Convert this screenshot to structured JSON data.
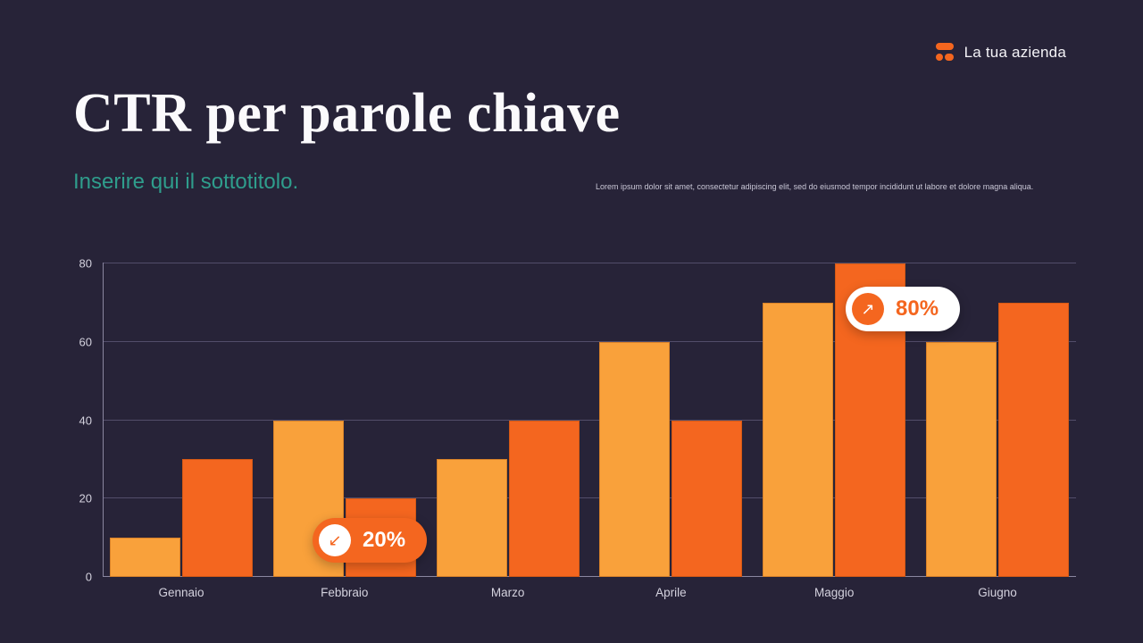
{
  "header": {
    "company_name": "La tua azienda",
    "logo_icon": "brand-mark",
    "logo_color": "#f4661f"
  },
  "title": "CTR per parole chiave",
  "subtitle": "Inserire qui il sottotitolo.",
  "description": "Lorem ipsum dolor sit amet, consectetur adipiscing elit, sed do eiusmod tempor incididunt ut labore et dolore magna aliqua.",
  "colors": {
    "background": "#272338",
    "accent_orange": "#f4661f",
    "accent_light_orange": "#f9a13b",
    "subtitle_teal": "#2f9d8c"
  },
  "chart_data": {
    "type": "bar",
    "categories": [
      "Gennaio",
      "Febbraio",
      "Marzo",
      "Aprile",
      "Maggio",
      "Giugno"
    ],
    "series": [
      {
        "name": "serie-chiara",
        "color": "#f9a13b",
        "values": [
          10,
          40,
          30,
          60,
          70,
          60
        ]
      },
      {
        "name": "serie-scura",
        "color": "#f4661f",
        "values": [
          30,
          20,
          40,
          40,
          80,
          70
        ]
      }
    ],
    "title": "",
    "xlabel": "",
    "ylabel": "",
    "ylim": [
      0,
      80
    ],
    "yticks": [
      0,
      20,
      40,
      60,
      80
    ],
    "grid": true,
    "legend": false,
    "annotations": [
      {
        "label": "20%",
        "direction": "down",
        "arrow": "↙",
        "category_index": 1
      },
      {
        "label": "80%",
        "direction": "up",
        "arrow": "↗",
        "category_index": 4
      }
    ]
  }
}
